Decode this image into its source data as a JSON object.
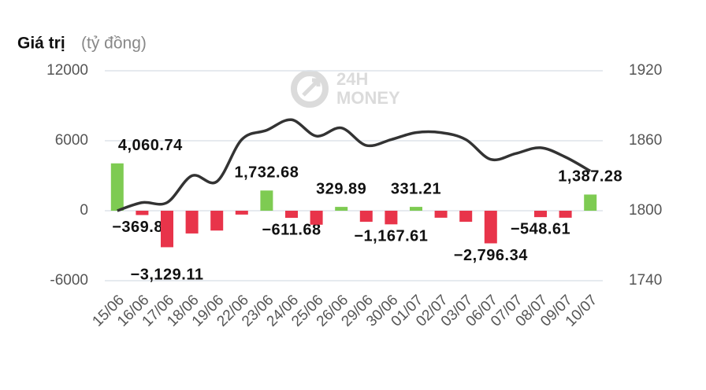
{
  "chart_data": {
    "type": "bar",
    "title": "Giá trị",
    "subtitle": "(tỷ đồng)",
    "watermark": [
      "24H",
      "MONEY"
    ],
    "categories": [
      "15/06",
      "16/06",
      "17/06",
      "18/06",
      "19/06",
      "22/06",
      "23/06",
      "24/06",
      "25/06",
      "26/06",
      "29/06",
      "30/06",
      "01/07",
      "02/07",
      "03/07",
      "06/07",
      "07/07",
      "08/07",
      "09/07",
      "10/07"
    ],
    "series": [
      {
        "type": "bar",
        "color_positive": "#7ecb52",
        "color_negative": "#e8344a",
        "values": [
          4060.74,
          -369.89,
          -3129.11,
          -1950,
          -1700,
          -330,
          1732.68,
          -611.68,
          -1200,
          329.89,
          -950,
          -1167.61,
          331.21,
          -600,
          -950,
          -2796.34,
          0,
          -548.61,
          -600,
          1387.28
        ],
        "value_labels": [
          "4,060.74",
          "−369.89",
          "−3,129.11",
          null,
          null,
          null,
          "1,732.68",
          "−611.68",
          null,
          "329.89",
          null,
          "−1,167.61",
          "331.21",
          null,
          null,
          "−2,796.34",
          null,
          "−548.61",
          null,
          "1,387.28"
        ]
      },
      {
        "type": "line",
        "axis": "y2",
        "color": "#333333",
        "values": [
          1800,
          1807,
          1807,
          1830,
          1825,
          1861,
          1869,
          1878,
          1864,
          1871,
          1856,
          1861,
          1867,
          1867,
          1861,
          1844,
          1849,
          1854,
          1846,
          1834
        ]
      }
    ],
    "ylim": [
      -6000,
      12000
    ],
    "yticks": [
      -6000,
      0,
      6000,
      12000
    ],
    "y2lim": [
      1740,
      1920
    ],
    "y2ticks": [
      1740,
      1800,
      1860,
      1920
    ],
    "grid": true
  }
}
